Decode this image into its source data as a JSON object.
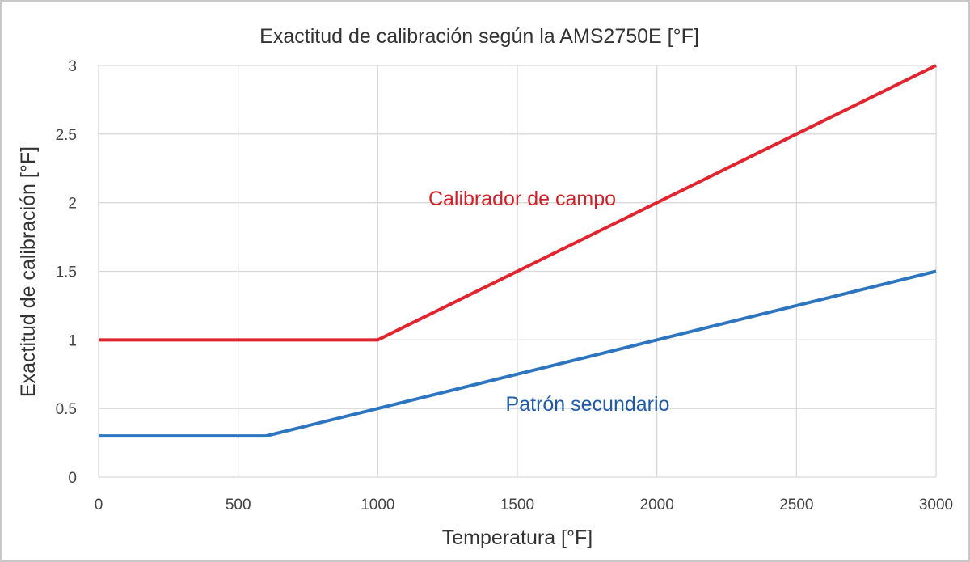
{
  "chart_data": {
    "type": "line",
    "title": "Exactitud de calibración según la AMS2750E [°F]",
    "xlabel": "Temperatura [°F]",
    "ylabel": "Exactitud de calibración [°F]",
    "xlim": [
      0,
      3000
    ],
    "ylim": [
      0,
      3
    ],
    "xticks": [
      "0",
      "500",
      "1000",
      "1500",
      "2000",
      "2500",
      "3000"
    ],
    "yticks": [
      "0",
      "0.5",
      "1",
      "1.5",
      "2",
      "2.5",
      "3"
    ],
    "grid": true,
    "series": [
      {
        "name": "Calibrador de campo",
        "color": "#e0252f",
        "x": [
          0,
          1000,
          3000
        ],
        "y": [
          1,
          1,
          3
        ]
      },
      {
        "name": "Patrón secundario",
        "color": "#2e75c0",
        "x": [
          0,
          600,
          3000
        ],
        "y": [
          0.3,
          0.3,
          1.5
        ]
      }
    ],
    "label_colors": {
      "Calibrador de campo": "#d0202a",
      "Patrón secundario": "#1f5aa6"
    }
  }
}
